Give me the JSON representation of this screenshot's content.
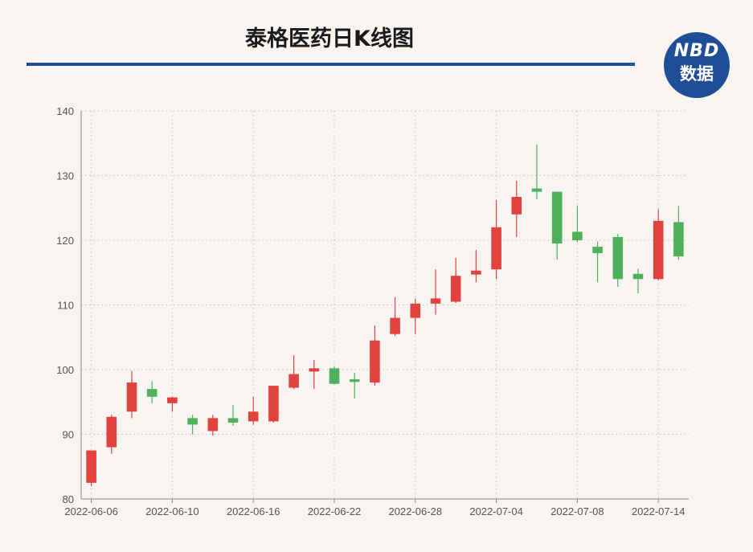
{
  "title": "泰格医药日K线图",
  "logo": {
    "top": "NBD",
    "bottom": "数据"
  },
  "colors": {
    "up": "#e2423d",
    "down": "#4fb159",
    "title_rule": "#1f4e96",
    "background": "#f7f4f1"
  },
  "chart_data": {
    "type": "candlestick",
    "title": "泰格医药日K线图",
    "ylim": [
      80,
      140
    ],
    "yticks": [
      80,
      90,
      100,
      110,
      120,
      130,
      140
    ],
    "x_tick_labels": [
      "2022-06-06",
      "2022-06-10",
      "2022-06-16",
      "2022-06-22",
      "2022-06-28",
      "2022-07-04",
      "2022-07-08",
      "2022-07-14"
    ],
    "x_tick_indices": [
      0,
      4,
      8,
      12,
      16,
      20,
      24,
      28
    ],
    "grid": true,
    "candles": [
      {
        "date": "2022-06-06",
        "open": 82.5,
        "close": 87.5,
        "high": 87.5,
        "low": 82.0
      },
      {
        "date": "2022-06-07",
        "open": 88.0,
        "close": 92.7,
        "high": 93.0,
        "low": 87.0
      },
      {
        "date": "2022-06-08",
        "open": 93.5,
        "close": 98.0,
        "high": 99.8,
        "low": 92.5
      },
      {
        "date": "2022-06-09",
        "open": 97.0,
        "close": 95.8,
        "high": 98.2,
        "low": 94.8
      },
      {
        "date": "2022-06-10",
        "open": 94.8,
        "close": 95.7,
        "high": 95.8,
        "low": 93.5
      },
      {
        "date": "2022-06-13",
        "open": 92.5,
        "close": 91.5,
        "high": 93.0,
        "low": 90.0
      },
      {
        "date": "2022-06-14",
        "open": 90.5,
        "close": 92.5,
        "high": 93.0,
        "low": 89.8
      },
      {
        "date": "2022-06-15",
        "open": 92.5,
        "close": 91.8,
        "high": 94.5,
        "low": 91.3
      },
      {
        "date": "2022-06-16",
        "open": 92.0,
        "close": 93.5,
        "high": 95.8,
        "low": 91.5
      },
      {
        "date": "2022-06-17",
        "open": 92.0,
        "close": 97.5,
        "high": 97.5,
        "low": 91.8
      },
      {
        "date": "2022-06-20",
        "open": 97.2,
        "close": 99.3,
        "high": 102.2,
        "low": 97.0
      },
      {
        "date": "2022-06-21",
        "open": 99.7,
        "close": 100.2,
        "high": 101.5,
        "low": 97.0
      },
      {
        "date": "2022-06-22",
        "open": 100.2,
        "close": 97.8,
        "high": 100.5,
        "low": 97.8
      },
      {
        "date": "2022-06-23",
        "open": 98.5,
        "close": 98.1,
        "high": 99.5,
        "low": 95.5
      },
      {
        "date": "2022-06-24",
        "open": 98.0,
        "close": 104.5,
        "high": 106.8,
        "low": 97.5
      },
      {
        "date": "2022-06-27",
        "open": 105.5,
        "close": 108.0,
        "high": 111.2,
        "low": 105.2
      },
      {
        "date": "2022-06-28",
        "open": 108.0,
        "close": 110.2,
        "high": 111.0,
        "low": 105.5
      },
      {
        "date": "2022-06-29",
        "open": 110.2,
        "close": 111.0,
        "high": 115.5,
        "low": 108.5
      },
      {
        "date": "2022-06-30",
        "open": 110.5,
        "close": 114.5,
        "high": 117.3,
        "low": 110.3
      },
      {
        "date": "2022-07-01",
        "open": 114.7,
        "close": 115.3,
        "high": 118.5,
        "low": 113.5
      },
      {
        "date": "2022-07-04",
        "open": 115.5,
        "close": 122.0,
        "high": 126.2,
        "low": 114.0
      },
      {
        "date": "2022-07-05",
        "open": 124.0,
        "close": 126.7,
        "high": 129.2,
        "low": 120.5
      },
      {
        "date": "2022-07-06",
        "open": 128.0,
        "close": 127.5,
        "high": 134.8,
        "low": 126.3
      },
      {
        "date": "2022-07-07",
        "open": 127.5,
        "close": 119.5,
        "high": 127.5,
        "low": 117.0
      },
      {
        "date": "2022-07-08",
        "open": 121.3,
        "close": 120.0,
        "high": 125.3,
        "low": 119.7
      },
      {
        "date": "2022-07-11",
        "open": 119.0,
        "close": 118.0,
        "high": 119.8,
        "low": 113.5
      },
      {
        "date": "2022-07-12",
        "open": 120.5,
        "close": 114.0,
        "high": 121.0,
        "low": 112.8
      },
      {
        "date": "2022-07-13",
        "open": 114.8,
        "close": 114.0,
        "high": 115.6,
        "low": 111.8
      },
      {
        "date": "2022-07-14",
        "open": 114.0,
        "close": 123.0,
        "high": 124.8,
        "low": 113.8
      },
      {
        "date": "2022-07-15",
        "open": 122.8,
        "close": 117.5,
        "high": 125.3,
        "low": 117.0
      }
    ]
  }
}
